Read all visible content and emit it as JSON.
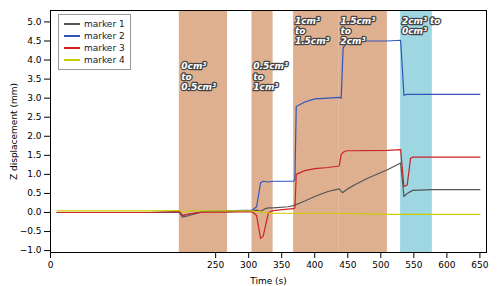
{
  "chart_data": {
    "type": "line",
    "xlabel": "Time (s)",
    "ylabel": "Z displacement (mm)",
    "xlim": [
      0,
      660
    ],
    "ylim": [
      -1.05,
      5.3
    ],
    "xticks": [
      0,
      250,
      300,
      350,
      400,
      450,
      500,
      550,
      600,
      650
    ],
    "yticks": [
      {
        "value": -1,
        "label": "−1.0"
      },
      {
        "value": -0.5,
        "label": "−0.5"
      },
      {
        "value": 0,
        "label": "0.0"
      },
      {
        "value": 0.5,
        "label": "0.5"
      },
      {
        "value": 1,
        "label": "1.0"
      },
      {
        "value": 1.5,
        "label": "1.5"
      },
      {
        "value": 2,
        "label": "2.0"
      },
      {
        "value": 2.5,
        "label": "2.5"
      },
      {
        "value": 3,
        "label": "3.0"
      },
      {
        "value": 3.5,
        "label": "3.5"
      },
      {
        "value": 4,
        "label": "4.0"
      },
      {
        "value": 4.5,
        "label": "4.5"
      },
      {
        "value": 5,
        "label": "5.0"
      }
    ],
    "grid": false,
    "legend": "upper left",
    "regions": [
      {
        "x1": 195,
        "x2": 268,
        "color": "#d4956a"
      },
      {
        "x1": 305,
        "x2": 337,
        "color": "#d4956a"
      },
      {
        "x1": 368,
        "x2": 437,
        "color": "#d4956a"
      },
      {
        "x1": 437,
        "x2": 510,
        "color": "#d4956a"
      },
      {
        "x1": 530,
        "x2": 578,
        "color": "#7ec8d8"
      }
    ],
    "annotations": [
      {
        "text": "0cm³\nto\n0.5cm³",
        "x": 198,
        "y": 3.95,
        "color": "white"
      },
      {
        "text": "0.5cm³\nto\n1cm³",
        "x": 307,
        "y": 3.95,
        "color": "white"
      },
      {
        "text": "1cm³\nto\n1.5cm³",
        "x": 370,
        "y": 5.15,
        "color": "white"
      },
      {
        "text": "1.5cm³\nto\n2cm³",
        "x": 439,
        "y": 5.15,
        "color": "white"
      },
      {
        "text": "2cm³ to\n0cm³",
        "x": 532,
        "y": 5.15,
        "color": "white"
      }
    ],
    "series": [
      {
        "name": "marker 1",
        "color": "#555555",
        "x": [
          10,
          80,
          150,
          195,
          200,
          210,
          230,
          268,
          305,
          312,
          318,
          325,
          330,
          337,
          360,
          368,
          385,
          400,
          420,
          437,
          442,
          450,
          460,
          480,
          510,
          530,
          535,
          540,
          548,
          578,
          610,
          650
        ],
        "values": [
          0.0,
          0.0,
          0.0,
          0.0,
          -0.12,
          -0.08,
          0.02,
          0.03,
          0.04,
          0.06,
          0.03,
          0.1,
          0.12,
          0.12,
          0.15,
          0.18,
          0.3,
          0.42,
          0.55,
          0.62,
          0.52,
          0.62,
          0.72,
          0.9,
          1.12,
          1.3,
          0.42,
          0.5,
          0.58,
          0.6,
          0.6,
          0.6
        ]
      },
      {
        "name": "marker 2",
        "color": "#3355bb",
        "x": [
          10,
          80,
          150,
          195,
          200,
          210,
          230,
          268,
          305,
          312,
          318,
          322,
          330,
          337,
          355,
          368,
          370,
          372,
          385,
          400,
          420,
          437,
          440,
          443,
          448,
          455,
          510,
          530,
          535,
          540,
          548,
          578,
          610,
          650
        ],
        "values": [
          0.0,
          0.0,
          0.0,
          0.02,
          -0.08,
          -0.04,
          0.02,
          0.04,
          0.06,
          0.15,
          0.78,
          0.82,
          0.8,
          0.82,
          0.82,
          0.82,
          0.88,
          2.78,
          2.9,
          2.98,
          3.0,
          3.02,
          3.0,
          4.32,
          4.45,
          4.5,
          4.5,
          4.52,
          3.08,
          3.1,
          3.1,
          3.1,
          3.1,
          3.1
        ]
      },
      {
        "name": "marker 3",
        "color": "#cc2222",
        "x": [
          10,
          80,
          150,
          195,
          200,
          210,
          230,
          268,
          305,
          312,
          318,
          322,
          330,
          337,
          355,
          368,
          370,
          372,
          385,
          400,
          420,
          437,
          440,
          443,
          448,
          455,
          510,
          530,
          535,
          540,
          545,
          548,
          578,
          610,
          650
        ],
        "values": [
          0.0,
          0.0,
          0.0,
          0.02,
          -0.08,
          -0.04,
          0.01,
          0.01,
          0.02,
          -0.08,
          -0.68,
          -0.62,
          0.0,
          0.05,
          0.08,
          0.1,
          0.12,
          1.0,
          1.1,
          1.15,
          1.18,
          1.22,
          1.52,
          1.58,
          1.62,
          1.62,
          1.63,
          1.65,
          0.68,
          0.72,
          1.42,
          1.45,
          1.45,
          1.45,
          1.45
        ]
      },
      {
        "name": "marker 4",
        "color": "#cccc00",
        "x": [
          10,
          80,
          150,
          195,
          200,
          210,
          230,
          268,
          305,
          312,
          318,
          322,
          337,
          400,
          437,
          510,
          530,
          578,
          650
        ],
        "values": [
          0.04,
          0.04,
          0.04,
          0.05,
          0.0,
          0.04,
          0.04,
          0.04,
          0.04,
          0.02,
          0.02,
          0.0,
          -0.02,
          -0.02,
          -0.02,
          -0.05,
          -0.05,
          -0.05,
          -0.05
        ]
      }
    ]
  }
}
